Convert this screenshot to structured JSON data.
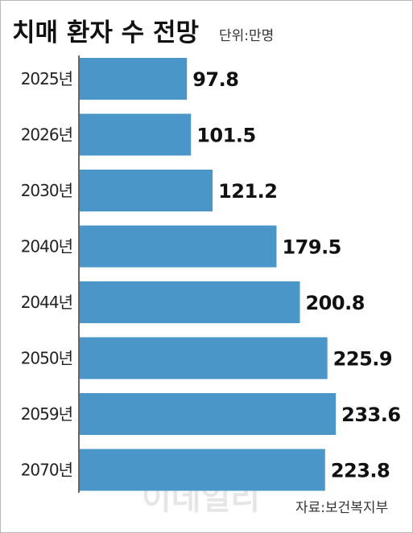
{
  "chart_data": {
    "type": "bar",
    "orientation": "horizontal",
    "title": "치매 환자 수 전망",
    "unit_label": "단위:만명",
    "categories": [
      "2025년",
      "2026년",
      "2030년",
      "2040년",
      "2044년",
      "2050년",
      "2059년",
      "2070년"
    ],
    "values": [
      97.8,
      101.5,
      121.2,
      179.5,
      200.8,
      225.9,
      233.6,
      223.8
    ],
    "value_labels": [
      "97.8",
      "101.5",
      "121.2",
      "179.5",
      "200.8",
      "225.9",
      "233.6",
      "223.8"
    ],
    "bar_color": "#4a96c8",
    "source": "자료:보건복지부",
    "watermark": "이데일리",
    "grid": false,
    "legend": "none"
  }
}
